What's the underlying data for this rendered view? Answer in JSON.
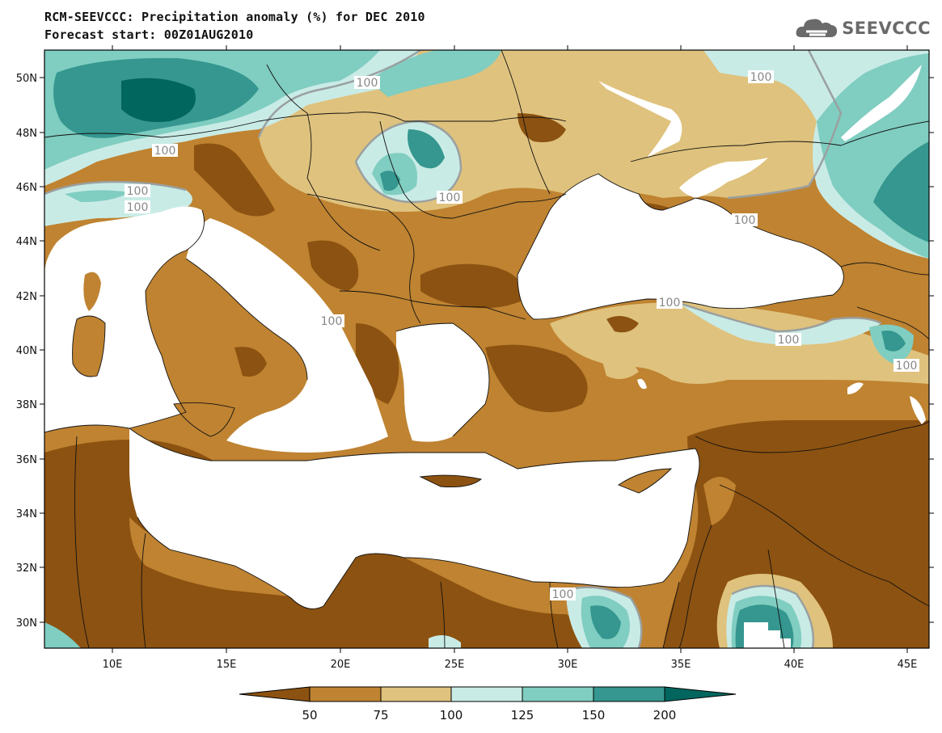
{
  "header": {
    "title": "RCM-SEEVCCC: Precipitation anomaly (%) for DEC 2010",
    "subtitle": "Forecast start: 00Z01AUG2010"
  },
  "logo": {
    "text": "SEEVCCC",
    "icon": "cloud-logo-icon"
  },
  "map": {
    "lat_labels": [
      "50N",
      "48N",
      "46N",
      "44N",
      "42N",
      "40N",
      "38N",
      "36N",
      "34N",
      "32N",
      "30N"
    ],
    "lon_labels": [
      "10E",
      "15E",
      "20E",
      "25E",
      "30E",
      "35E",
      "40E",
      "45E"
    ],
    "contour_labels": [
      "100",
      "100",
      "100",
      "100",
      "100",
      "100",
      "100",
      "100",
      "100",
      "100",
      "100",
      "100"
    ]
  },
  "colorbar": {
    "labels": [
      "50",
      "75",
      "100",
      "125",
      "150",
      "200"
    ],
    "colors": [
      "#8c5211",
      "#bf8331",
      "#dfc27d",
      "#c9ebe6",
      "#80cdc1",
      "#35978f",
      "#01665e"
    ]
  },
  "colors": {
    "sea": "#ffffff",
    "border_line": "#111111",
    "contour_100": "#9aa0a0"
  }
}
